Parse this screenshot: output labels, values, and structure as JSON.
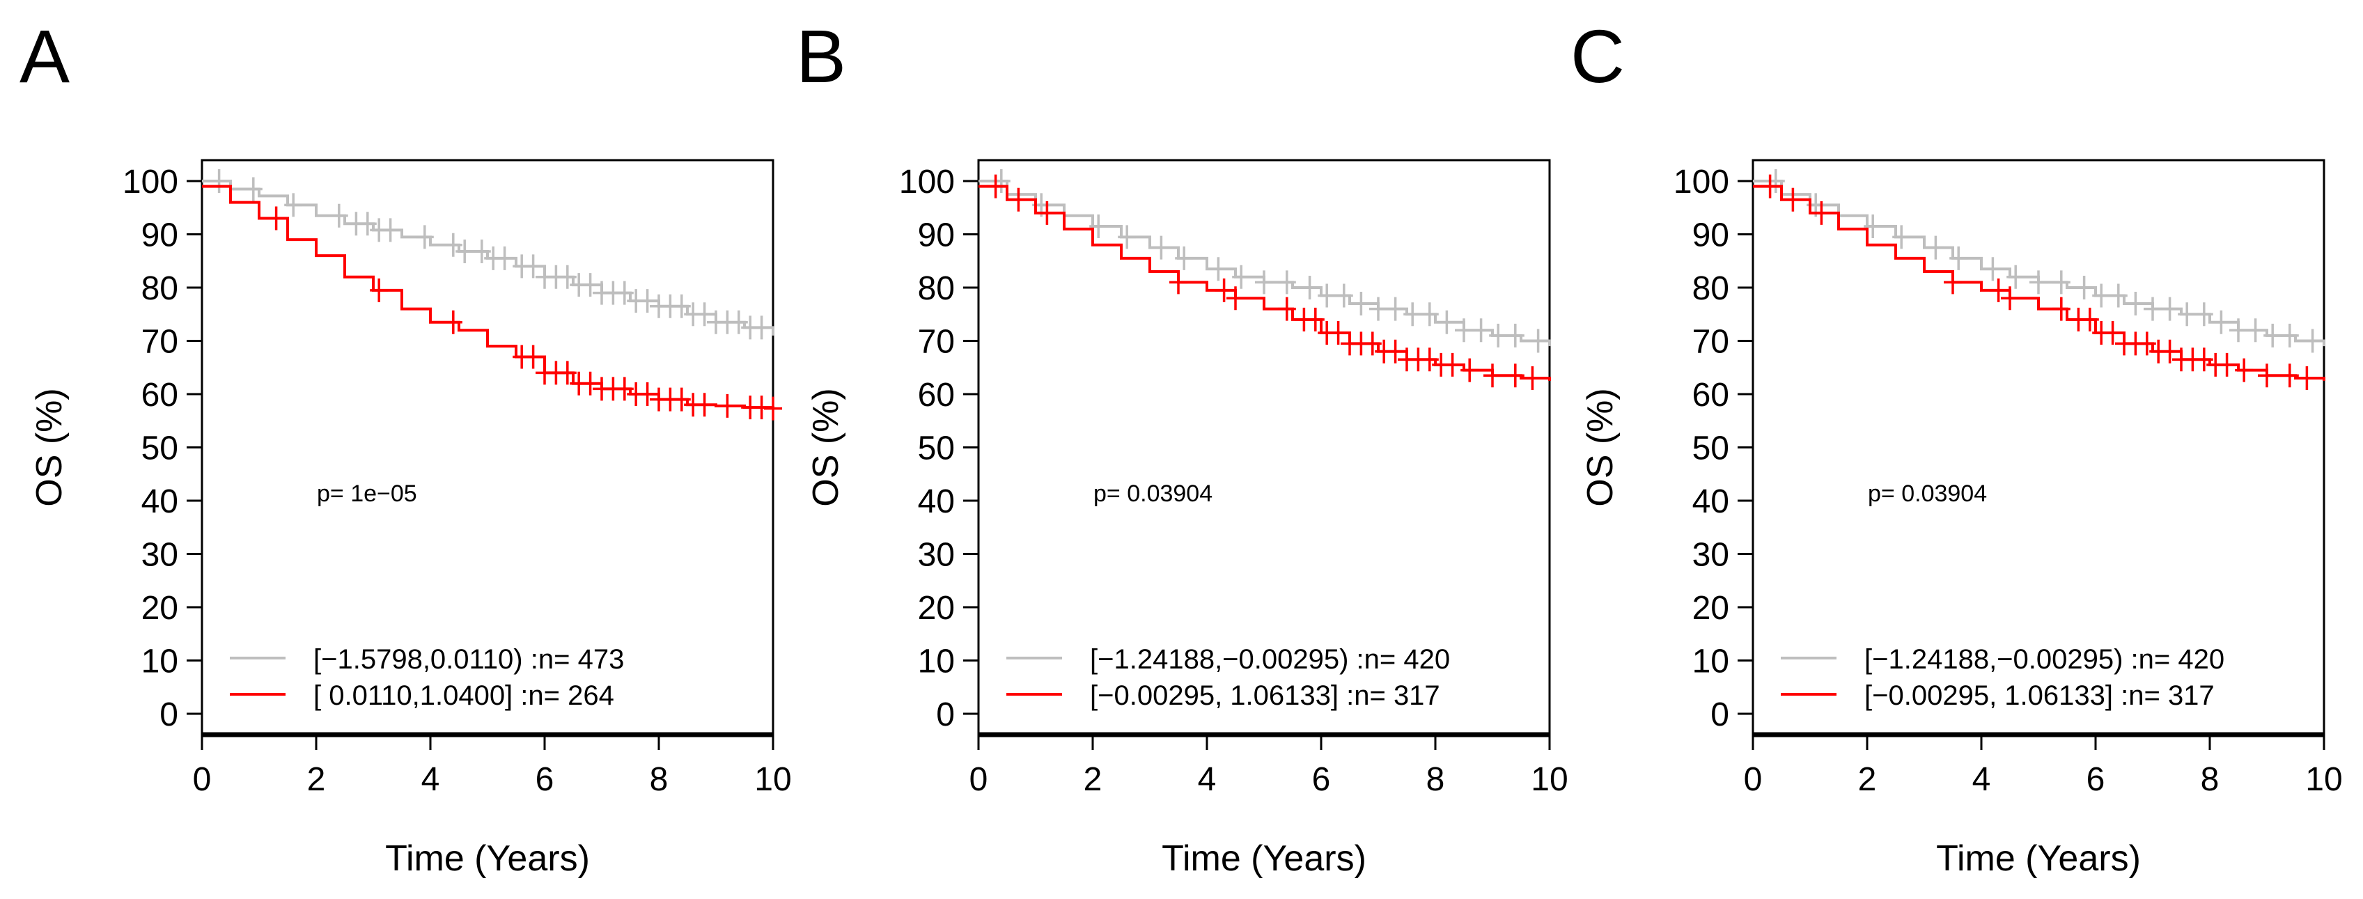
{
  "figure": {
    "panel_letters": [
      "A",
      "B",
      "C"
    ]
  },
  "chart_data": [
    {
      "type": "line",
      "panel": "A",
      "xlabel": "Time (Years)",
      "ylabel": "OS (%)",
      "xlim": [
        0,
        10
      ],
      "ylim": [
        0,
        100
      ],
      "x_ticks": [
        "0",
        "2",
        "4",
        "6",
        "8",
        "10"
      ],
      "y_ticks": [
        "0",
        "10",
        "20",
        "30",
        "40",
        "50",
        "60",
        "70",
        "80",
        "90",
        "100"
      ],
      "annotation": "p= 1e−05",
      "legend_position": "bottom-left",
      "series": [
        {
          "name": "[−1.5798,0.0110) :n= 473",
          "color": "#bebebe",
          "x": [
            0,
            0.5,
            1,
            1.5,
            2,
            2.5,
            3,
            3.5,
            4,
            4.5,
            5,
            5.5,
            6,
            6.5,
            7,
            7.5,
            8,
            8.5,
            9,
            9.5,
            10
          ],
          "y": [
            100,
            98.5,
            97.2,
            95.5,
            93.5,
            92,
            90.8,
            89.5,
            88,
            86.8,
            85.5,
            84,
            82,
            80.5,
            79,
            77.5,
            76.5,
            75,
            73.5,
            72.5,
            71
          ],
          "censor_x": [
            0.3,
            0.9,
            1.6,
            2.4,
            2.7,
            2.9,
            3.1,
            3.3,
            3.9,
            4.4,
            4.6,
            4.9,
            5.1,
            5.3,
            5.6,
            5.8,
            6.0,
            6.2,
            6.4,
            6.6,
            6.8,
            7.0,
            7.2,
            7.4,
            7.6,
            7.8,
            8.0,
            8.2,
            8.4,
            8.6,
            8.8,
            9.0,
            9.2,
            9.4,
            9.6,
            9.8
          ]
        },
        {
          "name": "[ 0.0110,1.0400] :n= 264",
          "color": "#ff0000",
          "x": [
            0,
            0.5,
            1,
            1.5,
            2,
            2.5,
            3,
            3.5,
            4,
            4.5,
            5,
            5.5,
            6,
            6.5,
            7,
            7.5,
            8,
            8.5,
            9,
            9.5,
            10
          ],
          "y": [
            99,
            96,
            93,
            89,
            86,
            82,
            79.5,
            76,
            73.5,
            72,
            69,
            67,
            64,
            62,
            61,
            60,
            59,
            58,
            57.8,
            57.5,
            57.3
          ],
          "censor_x": [
            1.3,
            3.1,
            4.4,
            5.6,
            5.8,
            6.0,
            6.2,
            6.4,
            6.6,
            6.8,
            7.0,
            7.2,
            7.4,
            7.6,
            7.8,
            8.0,
            8.2,
            8.4,
            8.6,
            8.8,
            9.2,
            9.6,
            9.8,
            10.0
          ]
        }
      ]
    },
    {
      "type": "line",
      "panel": "B",
      "xlabel": "Time (Years)",
      "ylabel": "OS (%)",
      "xlim": [
        0,
        10
      ],
      "ylim": [
        0,
        100
      ],
      "x_ticks": [
        "0",
        "2",
        "4",
        "6",
        "8",
        "10"
      ],
      "y_ticks": [
        "0",
        "10",
        "20",
        "30",
        "40",
        "50",
        "60",
        "70",
        "80",
        "90",
        "100"
      ],
      "annotation": "p= 0.03904",
      "legend_position": "bottom-left",
      "series": [
        {
          "name": "[−1.24188,−0.00295) :n= 420",
          "color": "#bebebe",
          "x": [
            0,
            0.5,
            1,
            1.5,
            2,
            2.5,
            3,
            3.5,
            4,
            4.5,
            5,
            5.5,
            6,
            6.5,
            7,
            7.5,
            8,
            8.5,
            9,
            9.5,
            10
          ],
          "y": [
            100,
            97.5,
            95.5,
            93.5,
            91.5,
            89.5,
            87.5,
            85.5,
            83.5,
            82,
            81,
            80,
            78.5,
            77,
            76,
            75,
            73.5,
            72,
            71,
            70,
            69
          ],
          "censor_x": [
            0.4,
            1.1,
            2.1,
            2.6,
            3.2,
            3.6,
            4.2,
            4.6,
            5.0,
            5.4,
            5.8,
            6.1,
            6.4,
            6.7,
            7.0,
            7.3,
            7.6,
            7.9,
            8.2,
            8.5,
            8.8,
            9.1,
            9.4,
            9.8
          ]
        },
        {
          "name": "[−0.00295, 1.06133] :n= 317",
          "color": "#ff0000",
          "x": [
            0,
            0.5,
            1,
            1.5,
            2,
            2.5,
            3,
            3.5,
            4,
            4.5,
            5,
            5.5,
            6,
            6.5,
            7,
            7.5,
            8,
            8.5,
            9,
            9.5,
            10
          ],
          "y": [
            99,
            96.5,
            94,
            91,
            88,
            85.5,
            83,
            81,
            79.5,
            78,
            76,
            74,
            71.5,
            69.5,
            68,
            66.5,
            65.5,
            64.5,
            63.5,
            63,
            62.5
          ],
          "censor_x": [
            0.3,
            0.7,
            1.2,
            3.5,
            4.3,
            4.5,
            5.4,
            5.7,
            5.9,
            6.1,
            6.3,
            6.5,
            6.7,
            6.9,
            7.1,
            7.3,
            7.5,
            7.7,
            7.9,
            8.1,
            8.3,
            8.6,
            9.0,
            9.4,
            9.7
          ]
        }
      ]
    },
    {
      "type": "line",
      "panel": "C",
      "xlabel": "Time (Years)",
      "ylabel": "OS (%)",
      "xlim": [
        0,
        10
      ],
      "ylim": [
        0,
        100
      ],
      "x_ticks": [
        "0",
        "2",
        "4",
        "6",
        "8",
        "10"
      ],
      "y_ticks": [
        "0",
        "10",
        "20",
        "30",
        "40",
        "50",
        "60",
        "70",
        "80",
        "90",
        "100"
      ],
      "annotation": "p= 0.03904",
      "legend_position": "bottom-left",
      "series": [
        {
          "name": "[−1.24188,−0.00295) :n= 420",
          "color": "#bebebe",
          "x": [
            0,
            0.5,
            1,
            1.5,
            2,
            2.5,
            3,
            3.5,
            4,
            4.5,
            5,
            5.5,
            6,
            6.5,
            7,
            7.5,
            8,
            8.5,
            9,
            9.5,
            10
          ],
          "y": [
            100,
            97.5,
            95.5,
            93.5,
            91.5,
            89.5,
            87.5,
            85.5,
            83.5,
            82,
            81,
            80,
            78.5,
            77,
            76,
            75,
            73.5,
            72,
            71,
            70,
            69
          ],
          "censor_x": [
            0.4,
            1.1,
            2.1,
            2.6,
            3.2,
            3.6,
            4.2,
            4.6,
            5.0,
            5.4,
            5.8,
            6.1,
            6.4,
            6.7,
            7.0,
            7.3,
            7.6,
            7.9,
            8.2,
            8.5,
            8.8,
            9.1,
            9.4,
            9.8
          ]
        },
        {
          "name": "[−0.00295, 1.06133] :n= 317",
          "color": "#ff0000",
          "x": [
            0,
            0.5,
            1,
            1.5,
            2,
            2.5,
            3,
            3.5,
            4,
            4.5,
            5,
            5.5,
            6,
            6.5,
            7,
            7.5,
            8,
            8.5,
            9,
            9.5,
            10
          ],
          "y": [
            99,
            96.5,
            94,
            91,
            88,
            85.5,
            83,
            81,
            79.5,
            78,
            76,
            74,
            71.5,
            69.5,
            68,
            66.5,
            65.5,
            64.5,
            63.5,
            63,
            62.5
          ],
          "censor_x": [
            0.3,
            0.7,
            1.2,
            3.5,
            4.3,
            4.5,
            5.4,
            5.7,
            5.9,
            6.1,
            6.3,
            6.5,
            6.7,
            6.9,
            7.1,
            7.3,
            7.5,
            7.7,
            7.9,
            8.1,
            8.3,
            8.6,
            9.0,
            9.4,
            9.7
          ]
        }
      ]
    }
  ]
}
